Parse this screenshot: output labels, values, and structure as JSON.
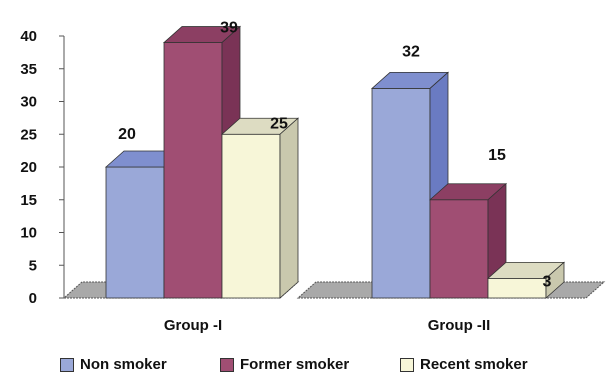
{
  "chart_data": {
    "type": "bar",
    "categories": [
      "Group  -I",
      "Group  -II"
    ],
    "series": [
      {
        "name": "Non smoker",
        "values": [
          20,
          32
        ],
        "color": "#9aa8d8",
        "side": "#6a7bc2",
        "top": "#7f8fcf"
      },
      {
        "name": "Former smoker",
        "values": [
          39,
          15
        ],
        "color": "#a04e73",
        "side": "#7a3356",
        "top": "#8c3f63"
      },
      {
        "name": "Recent smoker",
        "values": [
          25,
          3
        ],
        "color": "#f7f6d8",
        "side": "#c9c8ad",
        "top": "#dddcc2"
      }
    ],
    "ylim": [
      0,
      40
    ],
    "yticks": [
      0,
      5,
      10,
      15,
      20,
      25,
      30,
      35,
      40
    ],
    "legend_position": "bottom"
  }
}
